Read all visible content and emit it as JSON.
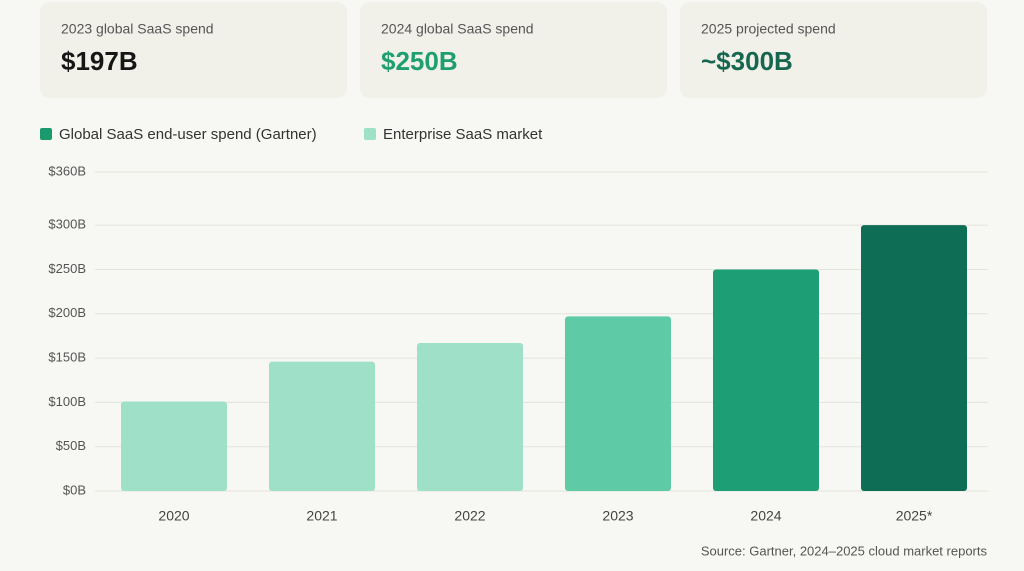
{
  "cards": [
    {
      "label": "2023 global SaaS spend",
      "value": "$197B",
      "color": "#161616"
    },
    {
      "label": "2024 global SaaS spend",
      "value": "$250B",
      "color": "#1f9e70"
    },
    {
      "label": "2025 projected spend",
      "value": "~$300B",
      "color": "#17664f"
    }
  ],
  "chart_data": {
    "type": "bar",
    "legend": [
      {
        "name": "Global SaaS end-user spend (Gartner)",
        "color": "#1a9a6e"
      },
      {
        "name": "Enterprise SaaS market",
        "color": "#9fe0c9"
      }
    ],
    "categories": [
      "2020",
      "2021",
      "2022",
      "2023",
      "2024",
      "2025*"
    ],
    "values": [
      101,
      146,
      167,
      197,
      250,
      300
    ],
    "colors": [
      "#9fe0c9",
      "#9fe0c9",
      "#9fe0c9",
      "#5ecba6",
      "#1d9e74",
      "#0e6e55"
    ],
    "ylim": [
      0,
      360
    ],
    "yticks": [
      {
        "value": 0,
        "label": "$0B"
      },
      {
        "value": 50,
        "label": "$50B"
      },
      {
        "value": 100,
        "label": "$100B"
      },
      {
        "value": 150,
        "label": "$150B"
      },
      {
        "value": 200,
        "label": "$200B"
      },
      {
        "value": 250,
        "label": "$250B"
      },
      {
        "value": 300,
        "label": "$300B"
      },
      {
        "value": 360,
        "label": "$360B"
      }
    ],
    "grid": true,
    "source": "Source: Gartner, 2024–2025 cloud market reports"
  }
}
